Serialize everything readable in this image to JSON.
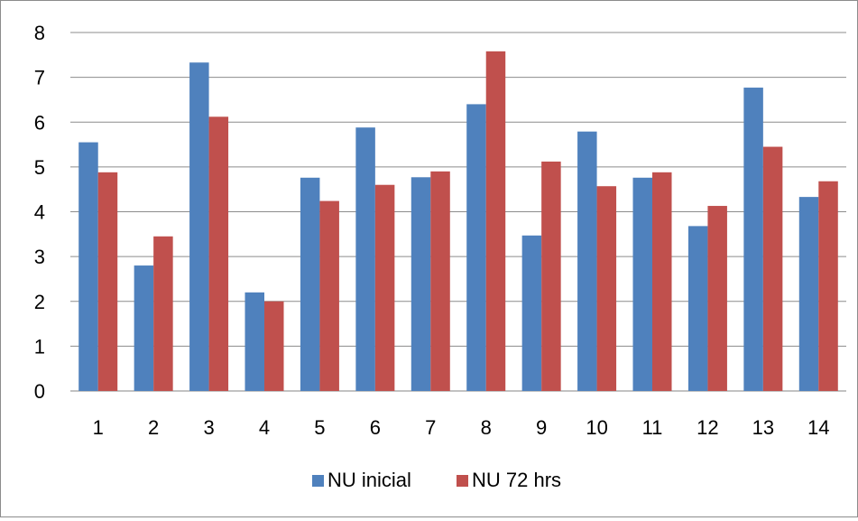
{
  "chart_data": {
    "type": "bar",
    "title": "",
    "xlabel": "",
    "ylabel": "",
    "categories": [
      "1",
      "2",
      "3",
      "4",
      "5",
      "6",
      "7",
      "8",
      "9",
      "10",
      "11",
      "12",
      "13",
      "14"
    ],
    "ylim": [
      0,
      8
    ],
    "yticks": [
      0,
      1,
      2,
      3,
      4,
      5,
      6,
      7,
      8
    ],
    "grid": true,
    "legend_position": "bottom",
    "series": [
      {
        "name": "NU inicial",
        "color": "#4f81bd",
        "values": [
          5.55,
          2.8,
          7.33,
          2.2,
          4.76,
          5.88,
          4.77,
          6.4,
          3.47,
          5.79,
          4.76,
          3.68,
          6.77,
          4.33
        ]
      },
      {
        "name": "NU 72 hrs",
        "color": "#c0504d",
        "values": [
          4.88,
          3.45,
          6.12,
          2.0,
          4.24,
          4.6,
          4.9,
          7.58,
          5.12,
          4.57,
          4.88,
          4.13,
          5.45,
          4.68
        ]
      }
    ]
  }
}
